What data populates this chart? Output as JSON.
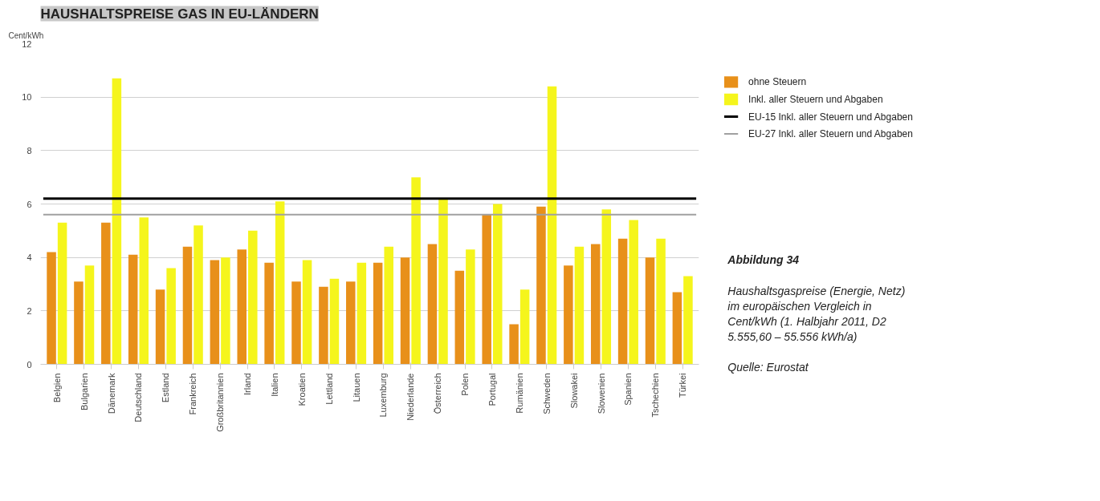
{
  "chart_data": {
    "type": "bar",
    "title": "HAUSHALTSPREISE GAS IN EU-LÄNDERN",
    "ylabel": "Cent/kWh",
    "categories": [
      "Belgien",
      "Bulgarien",
      "Dänemark",
      "Deutschland",
      "Estland",
      "Frankreich",
      "Großbritannien",
      "Irland",
      "Italien",
      "Kroatien",
      "Lettland",
      "Litauen",
      "Luxemburg",
      "Niederlande",
      "Österreich",
      "Polen",
      "Portugal",
      "Rumänien",
      "Schweden",
      "Slowakei",
      "Slowenien",
      "Spanien",
      "Tschechien",
      "Türkei"
    ],
    "series": [
      {
        "name": "ohne Steuern",
        "color": "#e8901a",
        "values": [
          4.2,
          3.1,
          5.3,
          4.1,
          2.8,
          4.4,
          3.9,
          4.3,
          3.8,
          3.1,
          2.9,
          3.1,
          3.8,
          4.0,
          4.5,
          3.5,
          5.6,
          1.5,
          5.9,
          3.7,
          4.5,
          4.7,
          4.0,
          2.7
        ]
      },
      {
        "name": "Inkl. aller Steuern und Abgaben",
        "color": "#f5f51c",
        "values": [
          5.3,
          3.7,
          10.7,
          5.5,
          3.6,
          5.2,
          4.0,
          5.0,
          6.1,
          3.9,
          3.2,
          3.8,
          4.4,
          7.0,
          6.2,
          4.3,
          6.0,
          2.8,
          10.4,
          4.4,
          5.8,
          5.4,
          4.7,
          3.3
        ]
      }
    ],
    "ylim": [
      0,
      12
    ],
    "yticks": [
      0,
      2,
      4,
      6,
      8,
      10,
      12
    ],
    "grid": "y",
    "legend": "top right",
    "ref_lines": [
      {
        "axis": "y",
        "value": 6.2,
        "label": "EU-15 Inkl. aller Steuern und Abgaben",
        "color": "#000000"
      },
      {
        "axis": "y",
        "value": 5.6,
        "label": "EU-27 Inkl. aller Steuern und Abgaben",
        "color": "#a0a0a0"
      }
    ],
    "annotations": [
      "Abbildung 34",
      "Haushaltsgaspreise (Energie, Netz) im europäischen Vergleich in Cent/kWh (1. Halbjahr 2011, D2 5.555,60 – 55.556 kWh/a)",
      "Quelle: Eurostat"
    ]
  }
}
